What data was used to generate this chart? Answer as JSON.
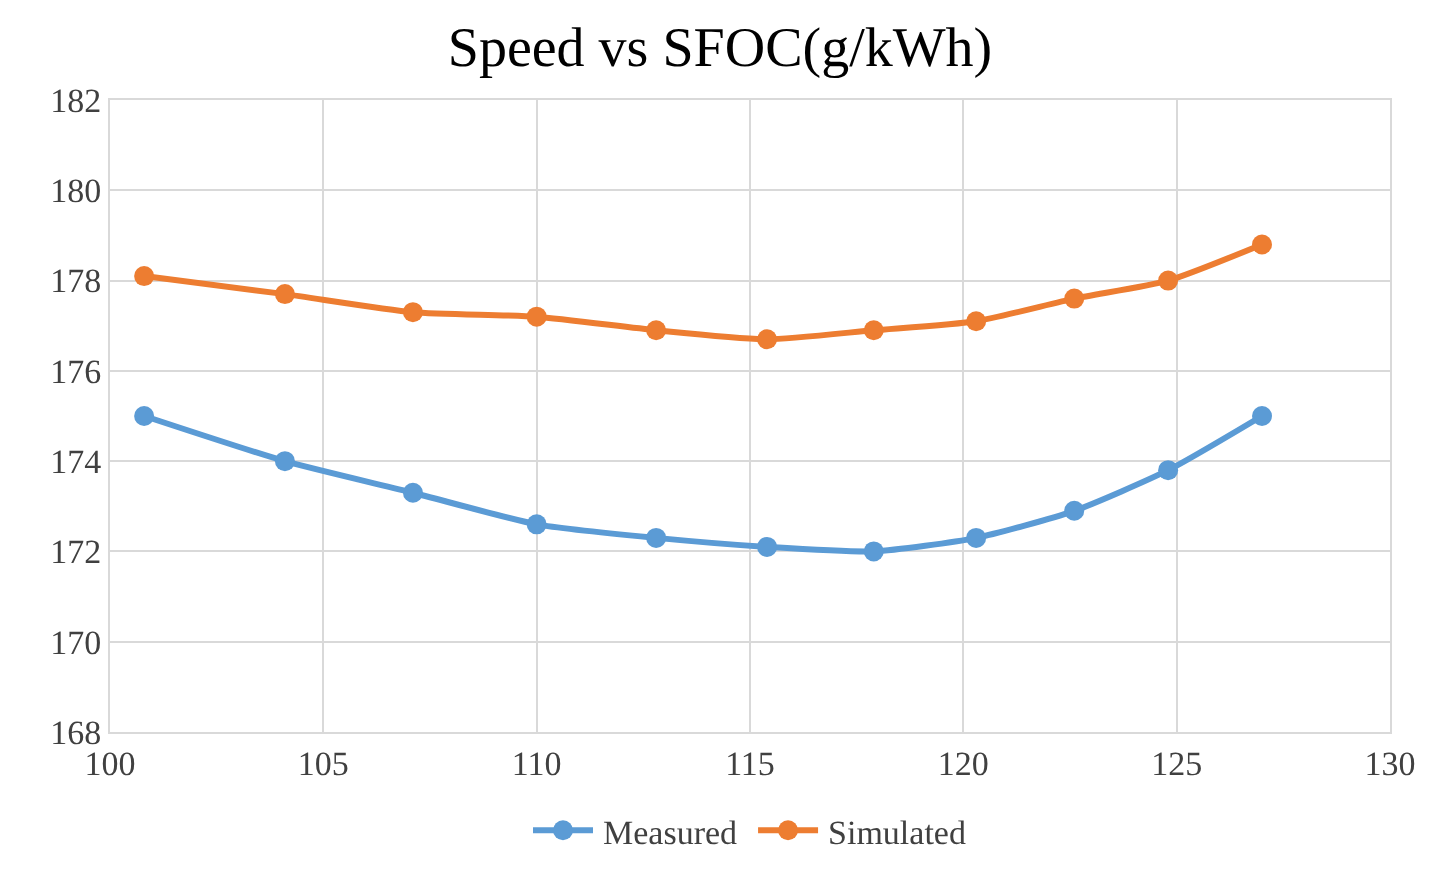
{
  "chart_data": {
    "type": "line",
    "title": "Speed vs SFOC(g/kWh)",
    "x": [
      100.8,
      104.1,
      107.1,
      110.0,
      112.8,
      115.4,
      117.9,
      120.3,
      122.6,
      124.8,
      127.0
    ],
    "series": [
      {
        "name": "Measured",
        "color": "#5b9bd5",
        "values": [
          175.0,
          174.0,
          173.3,
          172.6,
          172.3,
          172.1,
          172.0,
          172.3,
          172.9,
          173.8,
          175.0
        ]
      },
      {
        "name": "Simulated",
        "color": "#ed7d31",
        "values": [
          178.1,
          177.7,
          177.3,
          177.2,
          176.9,
          176.7,
          176.9,
          177.1,
          177.6,
          178.0,
          178.8
        ]
      }
    ],
    "xlim": [
      100,
      130
    ],
    "xticks": [
      100,
      105,
      110,
      115,
      120,
      125,
      130
    ],
    "ylim": [
      168,
      182
    ],
    "yticks": [
      168,
      170,
      172,
      174,
      176,
      178,
      180,
      182
    ],
    "grid": true,
    "legend": "bottom",
    "marker": "circle",
    "line_style": "solid"
  }
}
